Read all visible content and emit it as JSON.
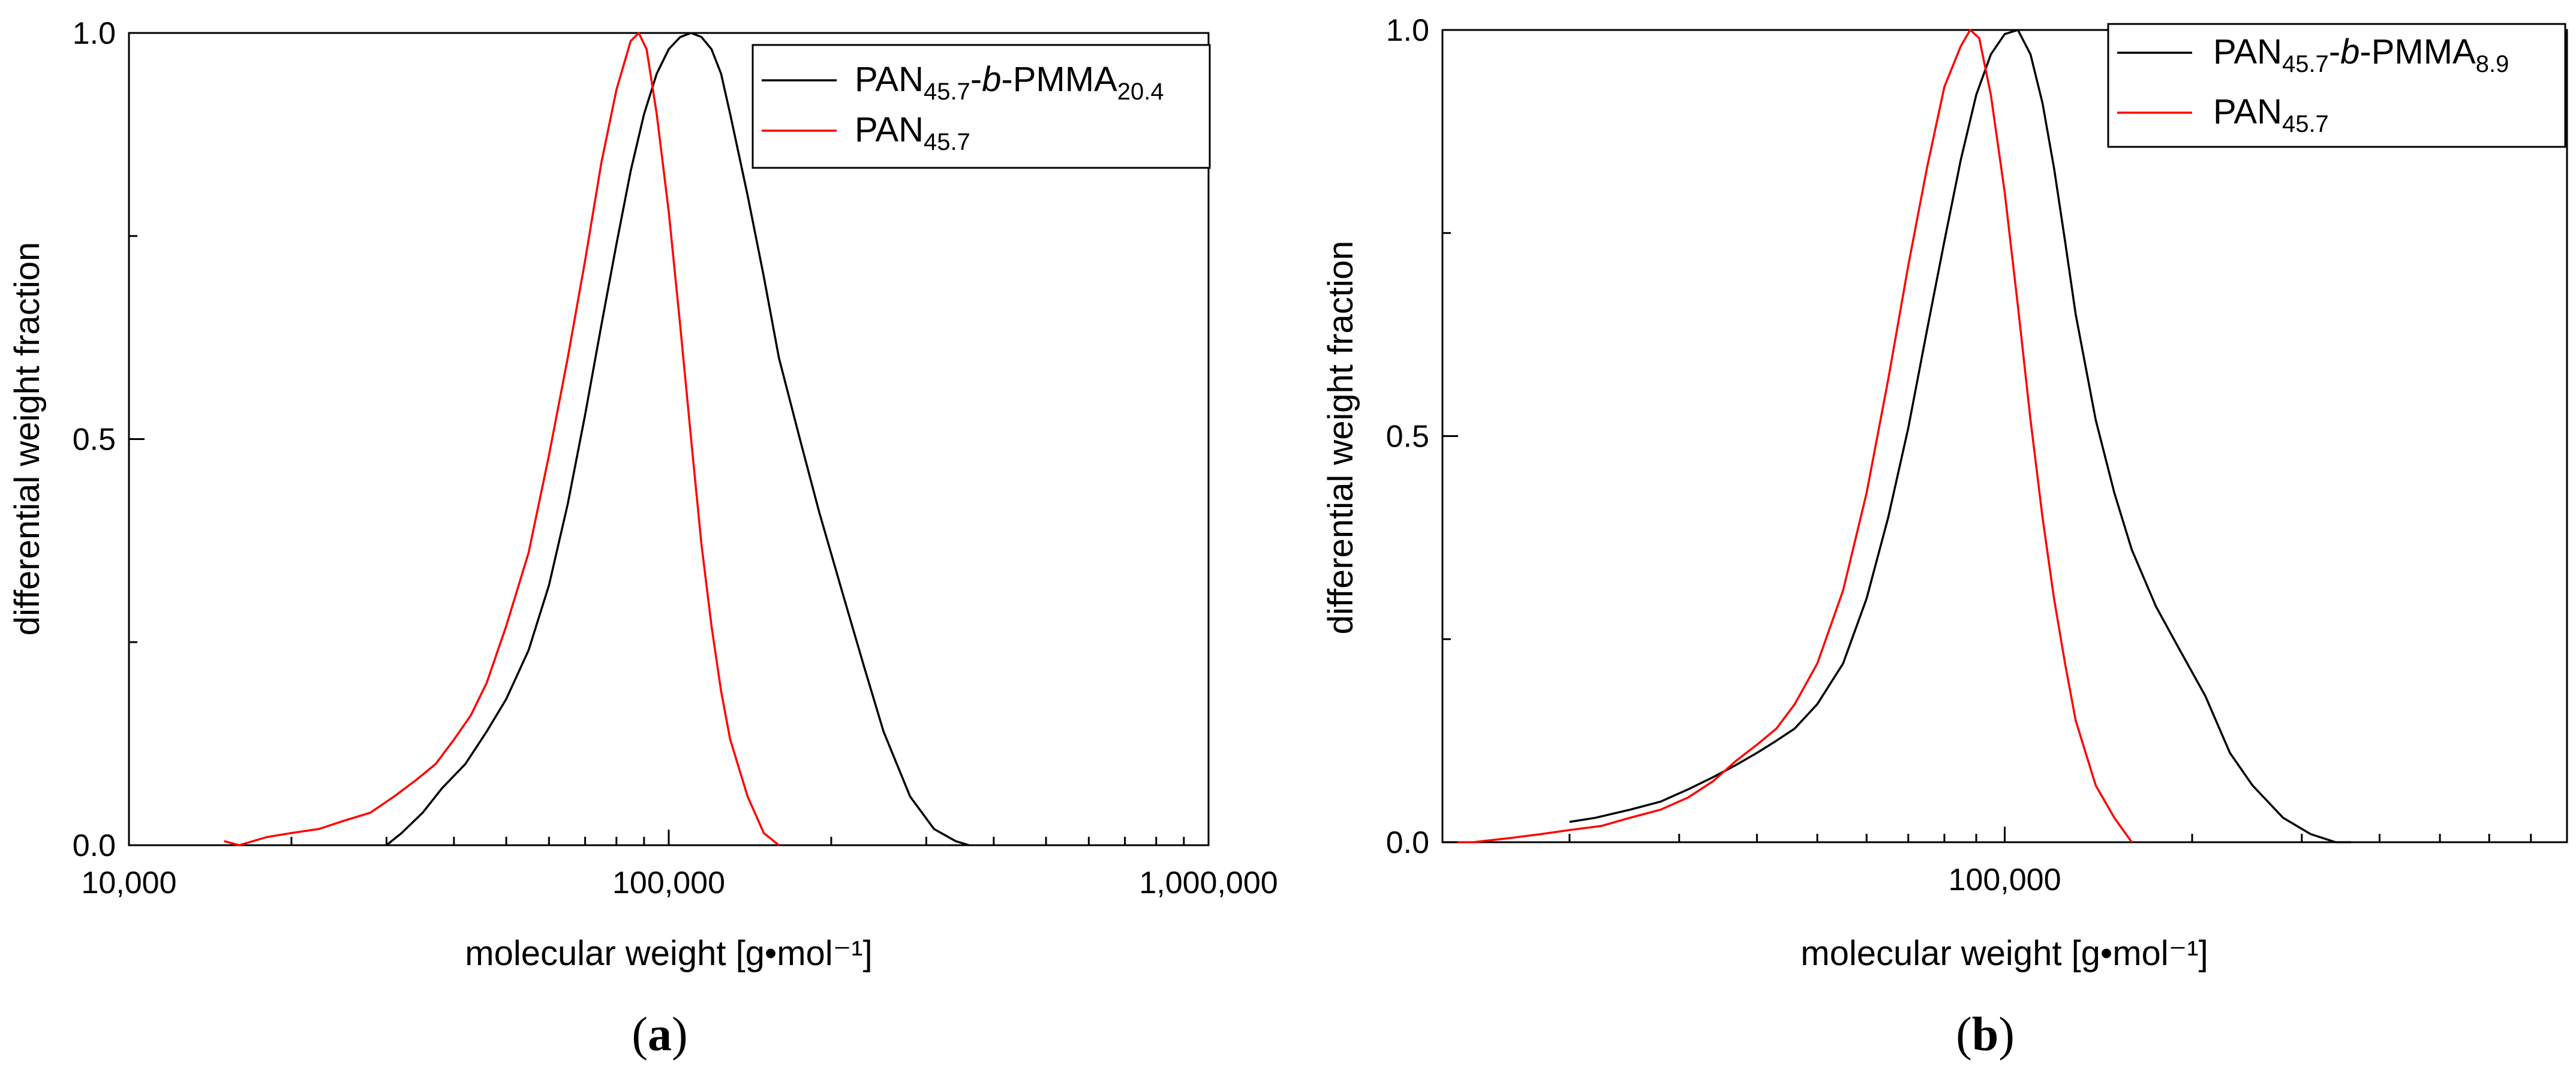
{
  "chart_data": [
    {
      "panel": "a",
      "type": "line",
      "title": "",
      "xlabel": "molecular weight [g•mol⁻¹]",
      "ylabel": "differential weight fraction",
      "xscale": "log",
      "xlim": [
        10000,
        1000000
      ],
      "ylim": [
        0,
        1
      ],
      "x_ticks": [
        10000,
        100000,
        1000000
      ],
      "x_tick_labels": [
        "10,000",
        "100,000",
        "1,000,000"
      ],
      "y_ticks": [
        0,
        0.5,
        1
      ],
      "y_tick_labels": [
        "0.0",
        "0.5",
        "1.0"
      ],
      "caption": "(a)",
      "legend_position": "top-right",
      "series": [
        {
          "name": "PAN45.7-b-PMMA20.4",
          "legend": {
            "base": "PAN",
            "sub1": "45.7",
            "mid": "-",
            "italic": "b",
            "mid2": "-PMMA",
            "sub2": "20.4"
          },
          "color": "#000000",
          "x": [
            30000,
            32000,
            35000,
            38000,
            42000,
            46000,
            50000,
            55000,
            60000,
            65000,
            70000,
            75000,
            80000,
            85000,
            90000,
            95000,
            100000,
            105000,
            110000,
            115000,
            120000,
            125000,
            130000,
            140000,
            150000,
            160000,
            175000,
            190000,
            210000,
            230000,
            250000,
            280000,
            310000,
            340000,
            360000
          ],
          "y": [
            0.0,
            0.015,
            0.04,
            0.07,
            0.1,
            0.14,
            0.18,
            0.24,
            0.32,
            0.42,
            0.53,
            0.64,
            0.74,
            0.83,
            0.9,
            0.95,
            0.98,
            0.995,
            1.0,
            0.995,
            0.98,
            0.95,
            0.9,
            0.8,
            0.7,
            0.6,
            0.5,
            0.41,
            0.31,
            0.22,
            0.14,
            0.06,
            0.02,
            0.005,
            0.0
          ]
        },
        {
          "name": "PAN45.7",
          "legend": {
            "base": "PAN",
            "sub1": "45.7"
          },
          "color": "#ff0000",
          "x": [
            15000,
            16000,
            18000,
            20000,
            22500,
            25000,
            28000,
            31000,
            34000,
            37000,
            40000,
            43000,
            46000,
            50000,
            55000,
            60000,
            65000,
            70000,
            75000,
            80000,
            85000,
            88000,
            91000,
            95000,
            100000,
            105000,
            110000,
            115000,
            120000,
            125000,
            130000,
            140000,
            150000,
            160000
          ],
          "y": [
            0.005,
            0.0,
            0.01,
            0.015,
            0.02,
            0.03,
            0.04,
            0.06,
            0.08,
            0.1,
            0.13,
            0.16,
            0.2,
            0.27,
            0.36,
            0.48,
            0.6,
            0.72,
            0.84,
            0.93,
            0.99,
            1.0,
            0.98,
            0.9,
            0.78,
            0.64,
            0.5,
            0.37,
            0.27,
            0.19,
            0.13,
            0.06,
            0.015,
            0.0
          ]
        }
      ]
    },
    {
      "panel": "b",
      "type": "line",
      "title": "",
      "xlabel": "molecular weight [g•mol⁻¹]",
      "ylabel": "differential weight fraction",
      "xscale": "log",
      "xlim": [
        12500,
        800000
      ],
      "ylim": [
        0,
        1
      ],
      "x_ticks": [
        100000
      ],
      "x_tick_labels": [
        "100,000"
      ],
      "y_ticks": [
        0,
        0.5,
        1
      ],
      "y_tick_labels": [
        "0.0",
        "0.5",
        "1.0"
      ],
      "caption": "(b)",
      "legend_position": "top-right",
      "series": [
        {
          "name": "PAN45.7-b-PMMA8.9",
          "legend": {
            "base": "PAN",
            "sub1": "45.7",
            "mid": "-",
            "italic": "b",
            "mid2": "-PMMA",
            "sub2": "8.9"
          },
          "color": "#000000",
          "x": [
            20000,
            22000,
            25000,
            28000,
            31000,
            34000,
            37000,
            40000,
            43000,
            46000,
            50000,
            55000,
            60000,
            65000,
            70000,
            75000,
            80000,
            85000,
            90000,
            95000,
            100000,
            105000,
            110000,
            115000,
            120000,
            125000,
            130000,
            140000,
            150000,
            160000,
            175000,
            190000,
            210000,
            230000,
            250000,
            280000,
            310000,
            340000,
            360000
          ],
          "y": [
            0.025,
            0.03,
            0.04,
            0.05,
            0.065,
            0.08,
            0.095,
            0.11,
            0.125,
            0.14,
            0.17,
            0.22,
            0.3,
            0.4,
            0.51,
            0.63,
            0.74,
            0.84,
            0.92,
            0.97,
            0.995,
            1.0,
            0.97,
            0.91,
            0.83,
            0.74,
            0.65,
            0.52,
            0.43,
            0.36,
            0.29,
            0.24,
            0.18,
            0.11,
            0.07,
            0.03,
            0.01,
            0.0,
            0.0
          ]
        },
        {
          "name": "PAN45.7",
          "legend": {
            "base": "PAN",
            "sub1": "45.7"
          },
          "color": "#ff0000",
          "x": [
            12500,
            14000,
            16000,
            18000,
            20000,
            22500,
            25000,
            28000,
            31000,
            34000,
            37000,
            40000,
            43000,
            46000,
            50000,
            55000,
            60000,
            65000,
            70000,
            75000,
            80000,
            85000,
            88000,
            91000,
            95000,
            100000,
            105000,
            110000,
            115000,
            120000,
            125000,
            130000,
            140000,
            150000,
            160000
          ],
          "y": [
            0.0,
            0.0,
            0.005,
            0.01,
            0.015,
            0.02,
            0.03,
            0.04,
            0.055,
            0.075,
            0.1,
            0.12,
            0.14,
            0.17,
            0.22,
            0.31,
            0.43,
            0.57,
            0.71,
            0.83,
            0.93,
            0.98,
            1.0,
            0.99,
            0.92,
            0.8,
            0.66,
            0.52,
            0.4,
            0.3,
            0.22,
            0.15,
            0.07,
            0.03,
            0.0
          ]
        }
      ]
    }
  ]
}
